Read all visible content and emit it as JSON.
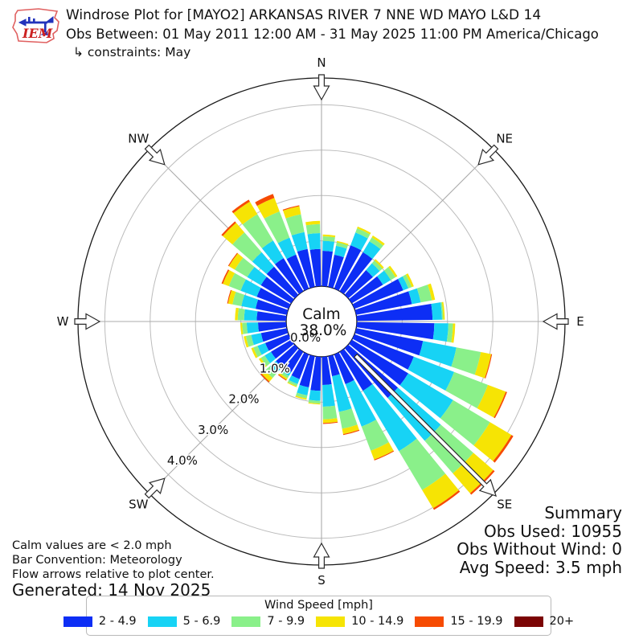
{
  "header": {
    "logo_text": "IEM",
    "title": "Windrose Plot for [MAYO2] ARKANSAS RIVER 7 NNE WD MAYO L&D 14",
    "subtitle": "Obs Between: 01 May 2011 12:00 AM - 31 May 2025 11:00 PM America/Chicago",
    "constraints": "↳ constraints: May"
  },
  "summary": {
    "title": "Summary",
    "obs_used": "Obs Used: 10955",
    "obs_without_wind": "Obs Without Wind: 0",
    "avg_speed": "Avg Speed: 3.5 mph"
  },
  "notes": {
    "line1": "Calm values are < 2.0 mph",
    "line2": "Bar Convention: Meteorology",
    "line3": "Flow arrows relative to plot center."
  },
  "generated": "Generated: 14 Nov 2025",
  "legend": {
    "title": "Wind Speed [mph]",
    "items": [
      {
        "label": "2 - 4.9",
        "color": "#0d2ef5"
      },
      {
        "label": "5 - 6.9",
        "color": "#17d3f5"
      },
      {
        "label": "7 - 9.9",
        "color": "#8af08a"
      },
      {
        "label": "10 - 14.9",
        "color": "#f6e404"
      },
      {
        "label": "15 - 19.9",
        "color": "#f64b02"
      },
      {
        "label": "20+",
        "color": "#7b0404"
      }
    ]
  },
  "chart_data": {
    "type": "windrose",
    "units": "mph",
    "calm": {
      "label": "Calm",
      "percent": "38.0%"
    },
    "compass_labels": [
      "N",
      "NE",
      "E",
      "SE",
      "S",
      "SW",
      "W",
      "NW"
    ],
    "compass_degrees": [
      0,
      45,
      90,
      135,
      180,
      225,
      270,
      315
    ],
    "ring_percents": [
      0,
      1,
      2,
      3,
      4
    ],
    "ring_labels": [
      "0.0%",
      "1.0%",
      "2.0%",
      "3.0%",
      "4.0%"
    ],
    "axis_max_percent": 4.6,
    "flow_arrow_direction_deg": 135,
    "speed_bins": [
      "2 - 4.9",
      "5 - 6.9",
      "7 - 9.9",
      "10 - 14.9",
      "15 - 19.9",
      "20+"
    ],
    "bin_colors": [
      "#0d2ef5",
      "#17d3f5",
      "#8af08a",
      "#f6e404",
      "#f64b02",
      "#7b0404"
    ],
    "petal_columns": [
      "direction_deg",
      "pct_2_4.9",
      "pct_5_6.9",
      "pct_7_9.9",
      "pct_10_14.9",
      "pct_15_19.9",
      "pct_20plus"
    ],
    "petals": [
      [
        5,
        0.78,
        0.22,
        0.1,
        0.04,
        0.0,
        0
      ],
      [
        15,
        0.72,
        0.2,
        0.08,
        0.03,
        0.0,
        0
      ],
      [
        25,
        1.02,
        0.3,
        0.1,
        0.04,
        0.0,
        0
      ],
      [
        35,
        1.0,
        0.28,
        0.1,
        0.05,
        0.0,
        0
      ],
      [
        45,
        0.72,
        0.2,
        0.08,
        0.04,
        0.0,
        0
      ],
      [
        55,
        0.8,
        0.2,
        0.12,
        0.05,
        0.0,
        0
      ],
      [
        65,
        1.15,
        0.12,
        0.08,
        0.05,
        0.0,
        0
      ],
      [
        75,
        1.25,
        0.2,
        0.25,
        0.07,
        0.0,
        0
      ],
      [
        85,
        1.67,
        0.21,
        0.03,
        0.03,
        0.0,
        0
      ],
      [
        95,
        1.71,
        0.31,
        0.1,
        0.05,
        0.0,
        0
      ],
      [
        105,
        1.5,
        0.75,
        0.55,
        0.23,
        0.02,
        0
      ],
      [
        115,
        1.4,
        0.95,
        0.8,
        0.42,
        0.03,
        0
      ],
      [
        125,
        1.45,
        1.15,
        0.95,
        0.55,
        0.05,
        0
      ],
      [
        135,
        1.45,
        1.25,
        0.95,
        0.58,
        0.04,
        0
      ],
      [
        145,
        1.0,
        1.55,
        1.0,
        0.47,
        0.04,
        0
      ],
      [
        155,
        0.7,
        1.0,
        0.57,
        0.21,
        0.02,
        0
      ],
      [
        165,
        0.45,
        0.8,
        0.38,
        0.12,
        0.02,
        0
      ],
      [
        175,
        0.62,
        0.48,
        0.28,
        0.08,
        0.02,
        0
      ],
      [
        185,
        0.75,
        0.22,
        0.06,
        0.02,
        0.0,
        0
      ],
      [
        195,
        0.7,
        0.18,
        0.07,
        0.03,
        0.0,
        0
      ],
      [
        205,
        0.58,
        0.12,
        0.05,
        0.02,
        0.0,
        0
      ],
      [
        215,
        0.52,
        0.1,
        0.06,
        0.04,
        0.02,
        0
      ],
      [
        225,
        0.55,
        0.18,
        0.14,
        0.1,
        0.03,
        0
      ],
      [
        235,
        0.52,
        0.16,
        0.1,
        0.05,
        0.0,
        0
      ],
      [
        245,
        0.55,
        0.18,
        0.1,
        0.05,
        0.0,
        0
      ],
      [
        255,
        0.58,
        0.22,
        0.12,
        0.05,
        0.0,
        0
      ],
      [
        265,
        0.62,
        0.25,
        0.1,
        0.04,
        0.0,
        0
      ],
      [
        275,
        0.65,
        0.28,
        0.14,
        0.06,
        0.0,
        0
      ],
      [
        285,
        0.7,
        0.32,
        0.2,
        0.1,
        0.02,
        0
      ],
      [
        295,
        0.75,
        0.38,
        0.28,
        0.14,
        0.03,
        0
      ],
      [
        305,
        0.78,
        0.35,
        0.32,
        0.15,
        0.02,
        0
      ],
      [
        315,
        0.82,
        0.42,
        0.58,
        0.28,
        0.04,
        0
      ],
      [
        325,
        0.85,
        0.45,
        0.68,
        0.32,
        0.05,
        0
      ],
      [
        335,
        0.8,
        0.4,
        0.62,
        0.32,
        0.09,
        0
      ],
      [
        345,
        0.85,
        0.38,
        0.4,
        0.18,
        0.02,
        0
      ],
      [
        355,
        0.82,
        0.35,
        0.2,
        0.07,
        0.0,
        0
      ]
    ]
  }
}
